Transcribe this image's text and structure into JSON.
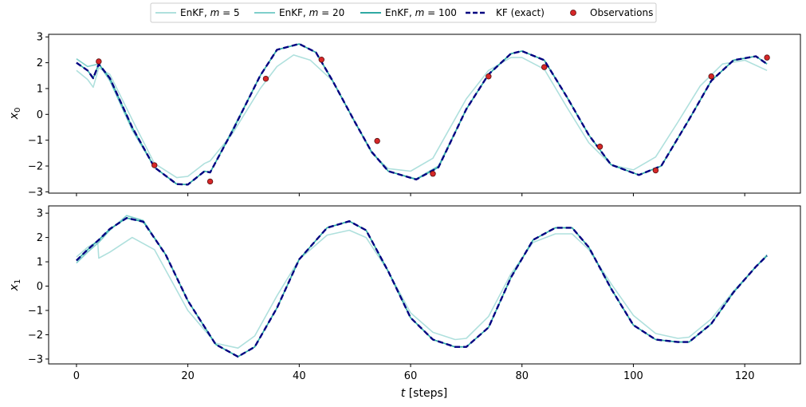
{
  "chart_data": [
    {
      "type": "line",
      "panel": "top",
      "ylabel": "x",
      "ylabel_subscript": "0",
      "xlim": [
        -5,
        130
      ],
      "ylim": [
        -3.05,
        3.1
      ],
      "x_ticks": [
        0,
        20,
        40,
        60,
        80,
        100,
        120
      ],
      "y_ticks": [
        -3,
        -2,
        -1,
        0,
        1,
        2,
        3
      ],
      "y_tick_labels": [
        "−3",
        "−2",
        "−1",
        "0",
        "1",
        "2",
        "3"
      ],
      "grid": false,
      "series": [
        {
          "name": "EnKF, m = 5",
          "color": "#afe0dd",
          "x": [
            0,
            2,
            3,
            4,
            6,
            10,
            14,
            18,
            20,
            23,
            24,
            28,
            33,
            36,
            39,
            42,
            46,
            50,
            53,
            56,
            60,
            64,
            70,
            74,
            78,
            80,
            84,
            88,
            92,
            96,
            100,
            104,
            108,
            112,
            116,
            120,
            124
          ],
          "y": [
            1.7,
            1.35,
            1.05,
            1.8,
            1.55,
            -0.2,
            -1.9,
            -2.45,
            -2.4,
            -1.9,
            -1.8,
            -0.75,
            1.0,
            1.85,
            2.3,
            2.1,
            1.3,
            -0.3,
            -1.5,
            -2.1,
            -2.2,
            -1.7,
            0.6,
            1.7,
            2.2,
            2.2,
            1.75,
            0.3,
            -1.1,
            -1.95,
            -2.15,
            -1.65,
            -0.3,
            1.1,
            1.95,
            2.1,
            1.7
          ]
        },
        {
          "name": "EnKF, m = 20",
          "color": "#7fcfcb",
          "x": [
            0,
            2,
            4,
            6,
            10,
            14,
            18,
            20,
            23,
            24,
            28,
            33,
            36,
            40,
            43,
            46,
            50,
            53,
            56,
            61,
            65,
            70,
            74,
            78,
            80,
            84,
            88,
            92,
            96,
            101,
            105,
            110,
            114,
            118,
            122,
            124
          ],
          "y": [
            2.15,
            1.85,
            1.95,
            1.3,
            -0.6,
            -2.05,
            -2.7,
            -2.72,
            -2.2,
            -2.25,
            -0.6,
            1.5,
            2.5,
            2.72,
            2.4,
            1.3,
            -0.3,
            -1.45,
            -2.2,
            -2.5,
            -2.0,
            0.2,
            1.55,
            2.35,
            2.45,
            2.1,
            0.7,
            -0.8,
            -1.95,
            -2.35,
            -2.0,
            -0.2,
            1.3,
            2.1,
            2.25,
            1.95
          ]
        },
        {
          "name": "EnKF, m = 100",
          "color": "#2fa9a3",
          "x": [
            0,
            2,
            3,
            4,
            6,
            10,
            14,
            18,
            20,
            23,
            24,
            28,
            33,
            36,
            40,
            43,
            46,
            50,
            53,
            56,
            61,
            65,
            70,
            74,
            78,
            80,
            84,
            88,
            92,
            96,
            101,
            105,
            110,
            114,
            118,
            122,
            124
          ],
          "y": [
            2.0,
            1.7,
            1.4,
            1.95,
            1.4,
            -0.5,
            -2.05,
            -2.7,
            -2.72,
            -2.2,
            -2.25,
            -0.65,
            1.5,
            2.5,
            2.73,
            2.4,
            1.3,
            -0.3,
            -1.45,
            -2.2,
            -2.52,
            -2.05,
            0.2,
            1.55,
            2.35,
            2.45,
            2.1,
            0.7,
            -0.8,
            -1.95,
            -2.35,
            -2.0,
            -0.2,
            1.3,
            2.1,
            2.25,
            1.95
          ]
        },
        {
          "name": "KF (exact)",
          "color": "#000080",
          "dashed": true,
          "x": [
            0,
            2,
            3,
            4,
            6,
            10,
            14,
            18,
            20,
            23,
            24,
            28,
            33,
            36,
            40,
            43,
            46,
            50,
            53,
            56,
            61,
            65,
            70,
            74,
            78,
            80,
            84,
            88,
            92,
            96,
            101,
            105,
            110,
            114,
            118,
            122,
            124
          ],
          "y": [
            2.0,
            1.7,
            1.4,
            1.95,
            1.4,
            -0.5,
            -2.05,
            -2.7,
            -2.72,
            -2.2,
            -2.25,
            -0.65,
            1.5,
            2.5,
            2.73,
            2.4,
            1.3,
            -0.3,
            -1.45,
            -2.2,
            -2.52,
            -2.05,
            0.2,
            1.55,
            2.35,
            2.45,
            2.1,
            0.7,
            -0.8,
            -1.95,
            -2.35,
            -2.0,
            -0.2,
            1.3,
            2.1,
            2.25,
            1.95
          ]
        }
      ],
      "observations": {
        "name": "Observations",
        "color": "#d62728",
        "x": [
          4,
          14,
          24,
          34,
          44,
          54,
          64,
          74,
          84,
          94,
          104,
          114,
          124
        ],
        "y": [
          2.05,
          -1.97,
          -2.6,
          1.38,
          2.12,
          -1.03,
          -2.3,
          1.47,
          1.83,
          -1.25,
          -2.17,
          1.47,
          2.2
        ]
      }
    },
    {
      "type": "line",
      "panel": "bottom",
      "xlabel": "t [steps]",
      "xlabel_var": "t",
      "xlabel_unit": "[steps]",
      "ylabel": "x",
      "ylabel_subscript": "1",
      "xlim": [
        -5,
        130
      ],
      "ylim": [
        -3.2,
        3.3
      ],
      "x_ticks": [
        0,
        20,
        40,
        60,
        80,
        100,
        120
      ],
      "x_tick_labels": [
        "0",
        "20",
        "40",
        "60",
        "80",
        "100",
        "120"
      ],
      "y_ticks": [
        -3,
        -2,
        -1,
        0,
        1,
        2,
        3
      ],
      "y_tick_labels": [
        "−3",
        "−2",
        "−1",
        "0",
        "1",
        "2",
        "3"
      ],
      "grid": false,
      "series": [
        {
          "name": "EnKF, m = 5",
          "color": "#afe0dd",
          "x": [
            0,
            2,
            3.8,
            4,
            6,
            10,
            14,
            20,
            25,
            29,
            32,
            36,
            40,
            45,
            49,
            52,
            56,
            60,
            64,
            68,
            70,
            74,
            78,
            82,
            86,
            89,
            92,
            96,
            100,
            104,
            108,
            110,
            114,
            118,
            122,
            124
          ],
          "y": [
            1.2,
            1.6,
            1.85,
            1.15,
            1.4,
            2.0,
            1.5,
            -1.0,
            -2.35,
            -2.55,
            -2.05,
            -0.4,
            1.1,
            2.1,
            2.3,
            2.0,
            0.6,
            -1.1,
            -1.9,
            -2.2,
            -2.15,
            -1.25,
            0.5,
            1.8,
            2.15,
            2.15,
            1.5,
            0.1,
            -1.2,
            -1.95,
            -2.15,
            -2.1,
            -1.35,
            -0.2,
            0.8,
            1.3
          ]
        },
        {
          "name": "EnKF, m = 20",
          "color": "#7fcfcb",
          "x": [
            0,
            2,
            4,
            6,
            9,
            12,
            16,
            20,
            25,
            29,
            32,
            36,
            40,
            45,
            49,
            52,
            56,
            60,
            64,
            68,
            70,
            74,
            78,
            82,
            86,
            89,
            92,
            96,
            100,
            104,
            108,
            110,
            114,
            118,
            122,
            124
          ],
          "y": [
            0.95,
            1.4,
            1.8,
            2.3,
            2.9,
            2.7,
            1.3,
            -0.6,
            -2.4,
            -2.9,
            -2.5,
            -0.9,
            1.1,
            2.4,
            2.67,
            2.3,
            0.6,
            -1.3,
            -2.2,
            -2.5,
            -2.5,
            -1.7,
            0.35,
            1.9,
            2.4,
            2.4,
            1.6,
            -0.1,
            -1.6,
            -2.2,
            -2.3,
            -2.3,
            -1.55,
            -0.25,
            0.8,
            1.25
          ]
        },
        {
          "name": "EnKF, m = 100",
          "color": "#2fa9a3",
          "x": [
            0,
            2,
            4,
            6,
            9,
            12,
            16,
            20,
            25,
            29,
            32,
            36,
            40,
            45,
            49,
            52,
            56,
            60,
            64,
            68,
            70,
            74,
            78,
            82,
            86,
            89,
            92,
            96,
            100,
            104,
            108,
            110,
            114,
            118,
            122,
            124
          ],
          "y": [
            1.05,
            1.5,
            1.9,
            2.35,
            2.8,
            2.65,
            1.3,
            -0.6,
            -2.4,
            -2.9,
            -2.5,
            -0.9,
            1.1,
            2.4,
            2.67,
            2.3,
            0.6,
            -1.3,
            -2.2,
            -2.5,
            -2.5,
            -1.7,
            0.35,
            1.9,
            2.4,
            2.4,
            1.6,
            -0.1,
            -1.6,
            -2.2,
            -2.3,
            -2.3,
            -1.55,
            -0.25,
            0.8,
            1.25
          ]
        },
        {
          "name": "KF (exact)",
          "color": "#000080",
          "dashed": true,
          "x": [
            0,
            2,
            4,
            6,
            9,
            12,
            16,
            20,
            25,
            29,
            32,
            36,
            40,
            45,
            49,
            52,
            56,
            60,
            64,
            68,
            70,
            74,
            78,
            82,
            86,
            89,
            92,
            96,
            100,
            104,
            108,
            110,
            114,
            118,
            122,
            124
          ],
          "y": [
            1.05,
            1.5,
            1.9,
            2.35,
            2.8,
            2.65,
            1.3,
            -0.6,
            -2.4,
            -2.9,
            -2.5,
            -0.9,
            1.1,
            2.4,
            2.67,
            2.3,
            0.6,
            -1.3,
            -2.2,
            -2.5,
            -2.5,
            -1.7,
            0.35,
            1.9,
            2.4,
            2.4,
            1.6,
            -0.1,
            -1.6,
            -2.2,
            -2.3,
            -2.3,
            -1.55,
            -0.25,
            0.8,
            1.25
          ]
        }
      ]
    }
  ],
  "legend": {
    "placement": "top-center",
    "items": [
      {
        "var": "m",
        "prefix": "EnKF, ",
        "value": "5",
        "style": "line",
        "color": "#afe0dd"
      },
      {
        "var": "m",
        "prefix": "EnKF, ",
        "value": "20",
        "style": "line",
        "color": "#7fcfcb"
      },
      {
        "var": "m",
        "prefix": "EnKF, ",
        "value": "100",
        "style": "line",
        "color": "#2fa9a3"
      },
      {
        "label": "KF (exact)",
        "style": "dashed",
        "color": "#000080"
      },
      {
        "label": "Observations",
        "style": "marker",
        "color": "#d62728"
      }
    ]
  }
}
